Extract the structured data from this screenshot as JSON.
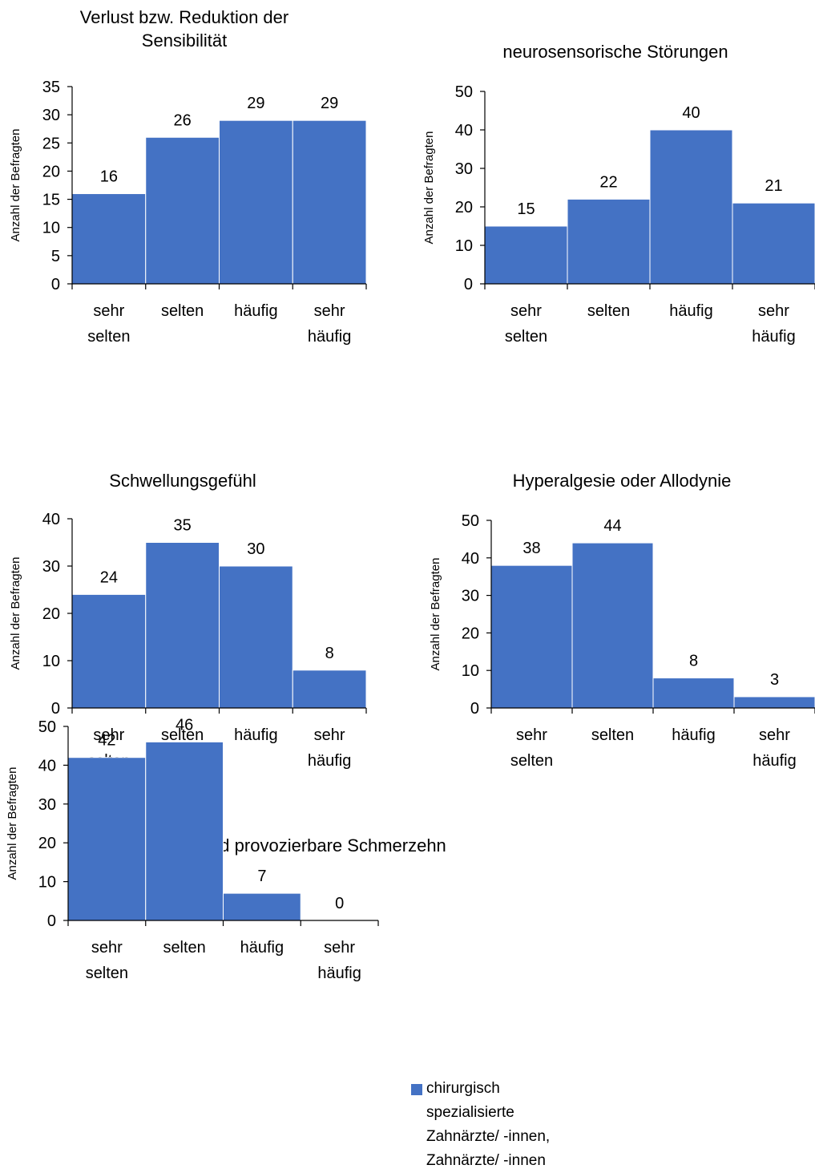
{
  "colors": {
    "bar": "#4472c4",
    "axis": "#000000",
    "text": "#000000"
  },
  "legend": {
    "label": "chirurgisch spezialisierte Zahnärzte/ -innen, Zahnärzte/ -innen"
  },
  "chart_data": [
    {
      "type": "bar",
      "title": [
        "Verlust bzw. Reduktion der",
        "Sensibilität"
      ],
      "ylabel": "Anzahl der Befragten",
      "categories": [
        [
          "sehr",
          "selten"
        ],
        [
          "selten"
        ],
        [
          "häufig"
        ],
        [
          "sehr",
          "häufig"
        ]
      ],
      "values": [
        16,
        26,
        29,
        29
      ],
      "ylim": [
        0,
        35
      ],
      "yticks": [
        0,
        5,
        10,
        15,
        20,
        25,
        30,
        35
      ],
      "grid": false,
      "legend": "none"
    },
    {
      "type": "bar",
      "title": [
        "neurosensorische Störungen"
      ],
      "ylabel": "Anzahl der Befragten",
      "categories": [
        [
          "sehr",
          "selten"
        ],
        [
          "selten"
        ],
        [
          "häufig"
        ],
        [
          "sehr",
          "häufig"
        ]
      ],
      "values": [
        15,
        22,
        40,
        21
      ],
      "ylim": [
        0,
        50
      ],
      "yticks": [
        0,
        10,
        20,
        30,
        40,
        50
      ],
      "grid": false,
      "legend": "none"
    },
    {
      "type": "bar",
      "title": [
        "Schwellungsgefühl"
      ],
      "ylabel": "Anzahl der Befragten",
      "categories": [
        [
          "sehr",
          "selten"
        ],
        [
          "selten"
        ],
        [
          "häufig"
        ],
        [
          "sehr",
          "häufig"
        ]
      ],
      "values": [
        24,
        35,
        30,
        8
      ],
      "ylim": [
        0,
        40
      ],
      "yticks": [
        0,
        10,
        20,
        30,
        40
      ],
      "grid": false,
      "legend": "none"
    },
    {
      "type": "bar",
      "title": [
        "Hyperalgesie oder Allodynie"
      ],
      "ylabel": "Anzahl der Befragten",
      "categories": [
        [
          "sehr",
          "selten"
        ],
        [
          "selten"
        ],
        [
          "häufig"
        ],
        [
          "sehr",
          "häufig"
        ]
      ],
      "values": [
        38,
        44,
        8,
        3
      ],
      "ylim": [
        0,
        50
      ],
      "yticks": [
        0,
        10,
        20,
        30,
        40,
        50
      ],
      "grid": false,
      "legend": "none"
    },
    {
      "type": "bar",
      "title": [
        "spontane und provozierbare Schmerzehn"
      ],
      "ylabel": "Anzahl der Befragten",
      "categories": [
        [
          "sehr",
          "selten"
        ],
        [
          "selten"
        ],
        [
          "häufig"
        ],
        [
          "sehr",
          "häufig"
        ]
      ],
      "values": [
        42,
        46,
        7,
        0
      ],
      "ylim": [
        0,
        50
      ],
      "yticks": [
        0,
        10,
        20,
        30,
        40,
        50
      ],
      "grid": false,
      "legend": "right"
    }
  ]
}
